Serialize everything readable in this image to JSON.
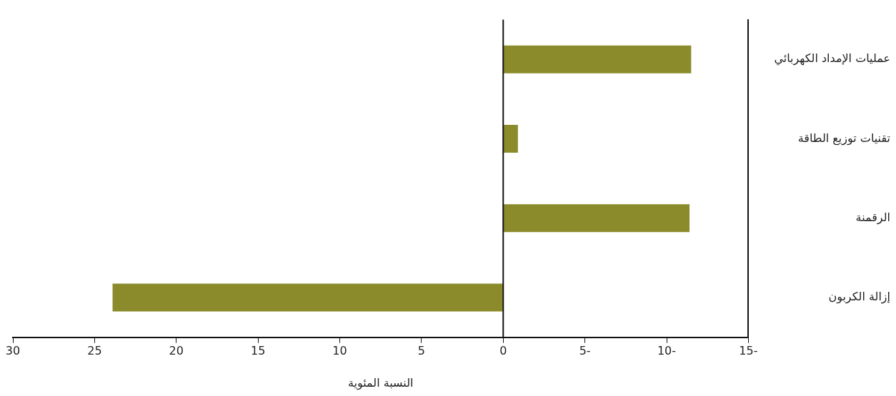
{
  "chart_data": {
    "type": "bar",
    "orientation": "horizontal",
    "xlabel": "النسبة المئوية",
    "categories": [
      "عمليات الإمداد الكهربائي",
      "تقنيات توزيع الطاقة",
      "الرقمنة",
      "إزالة الكربون"
    ],
    "values": [
      -11.5,
      -0.9,
      -11.4,
      23.9
    ],
    "color": "#8b8b2b",
    "xlim": [
      30,
      -15
    ],
    "xticks": [
      30,
      25,
      20,
      15,
      10,
      5,
      0,
      {
        "value": -5,
        "label": "5-"
      },
      {
        "value": -10,
        "label": "10-"
      },
      {
        "value": -15,
        "label": "15-"
      }
    ],
    "ref_lines": [
      {
        "axis": "x",
        "value": 0,
        "color": "#111111"
      }
    ],
    "grid": false,
    "legend": false
  }
}
